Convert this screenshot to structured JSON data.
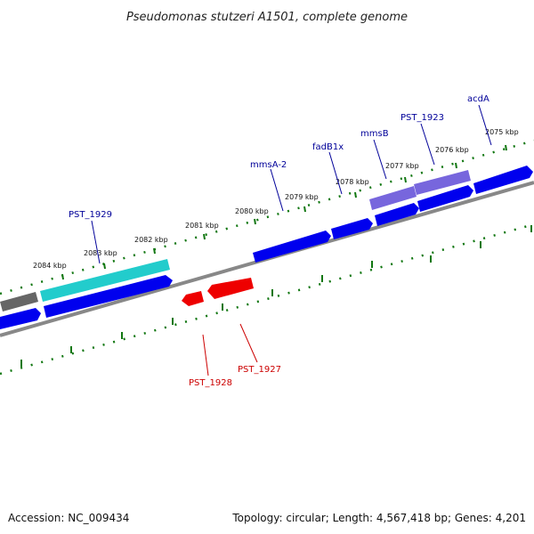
{
  "title": "Pseudomonas stutzeri A1501, complete genome",
  "footer": {
    "accession": "Accession: NC_009434",
    "summary": "Topology: circular; Length: 4,567,418 bp; Genes: 4,201"
  },
  "colors": {
    "forward_gene": "#0000ee",
    "reverse_gene": "#ee0000",
    "highlight_gene": "#22cccc",
    "pseudo_gene": "#7766dd",
    "other_gene": "#666666",
    "backbone": "#888888",
    "tick": "#117711",
    "label_forward": "#000099",
    "label_reverse": "#cc0000"
  },
  "ticks": {
    "labels": [
      "2084 kbp",
      "2083 kbp",
      "2082 kbp",
      "2081 kbp",
      "2080 kbp",
      "2079 kbp",
      "2078 kbp",
      "2077 kbp",
      "2076 kbp",
      "2075 kbp"
    ]
  },
  "gene_labels": {
    "forward": [
      "PST_1929",
      "mmsA-2",
      "fadB1x",
      "mmsB",
      "PST_1923",
      "acdA"
    ],
    "reverse": [
      "PST_1928",
      "PST_1927"
    ]
  }
}
